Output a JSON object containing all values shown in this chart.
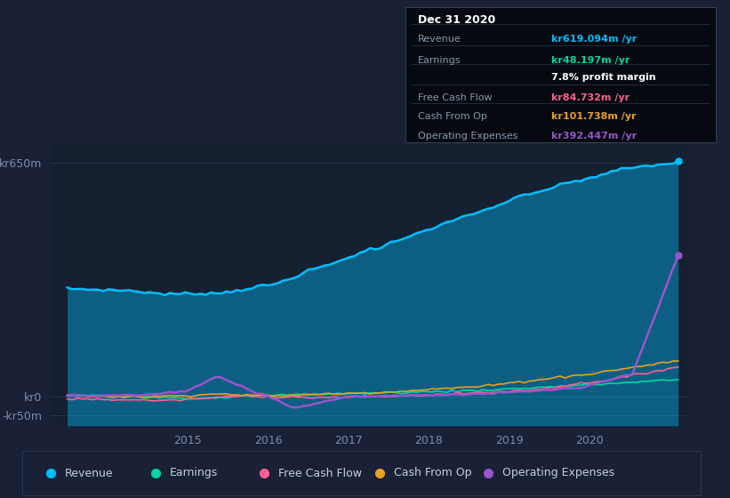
{
  "bg_color": "#1a2035",
  "plot_bg_color": "#152030",
  "grid_color": "#2a3a50",
  "text_color": "#7a8eaa",
  "legend_items": [
    {
      "label": "Revenue",
      "color": "#00bfff"
    },
    {
      "label": "Earnings",
      "color": "#00d4a0"
    },
    {
      "label": "Free Cash Flow",
      "color": "#ff6090"
    },
    {
      "label": "Cash From Op",
      "color": "#e8a020"
    },
    {
      "label": "Operating Expenses",
      "color": "#9955cc"
    }
  ],
  "revenue_color": "#00bfff",
  "earnings_color": "#00d4a0",
  "fcf_color": "#ff6090",
  "cashop_color": "#e8a020",
  "opex_color": "#9955cc",
  "tooltip": {
    "date": "Dec 31 2020",
    "revenue_label": "Revenue",
    "revenue_val": "kr619.094m /yr",
    "revenue_color": "#00bfff",
    "earnings_label": "Earnings",
    "earnings_val": "kr48.197m /yr",
    "earnings_color": "#00d4a0",
    "margin_val": "7.8% profit margin",
    "fcf_label": "Free Cash Flow",
    "fcf_val": "kr84.732m /yr",
    "fcf_color": "#ff6090",
    "cashop_label": "Cash From Op",
    "cashop_val": "kr101.738m /yr",
    "cashop_color": "#e8a020",
    "opex_label": "Operating Expenses",
    "opex_val": "kr392.447m /yr",
    "opex_color": "#9955cc"
  },
  "yticks": [
    -50,
    0,
    650
  ],
  "ytick_labels": [
    "-kr50m",
    "kr0",
    "kr650m"
  ],
  "xtick_years": [
    2015,
    2016,
    2017,
    2018,
    2019,
    2020
  ],
  "xlim": [
    2013.3,
    2021.2
  ],
  "ylim": [
    -80,
    700
  ]
}
